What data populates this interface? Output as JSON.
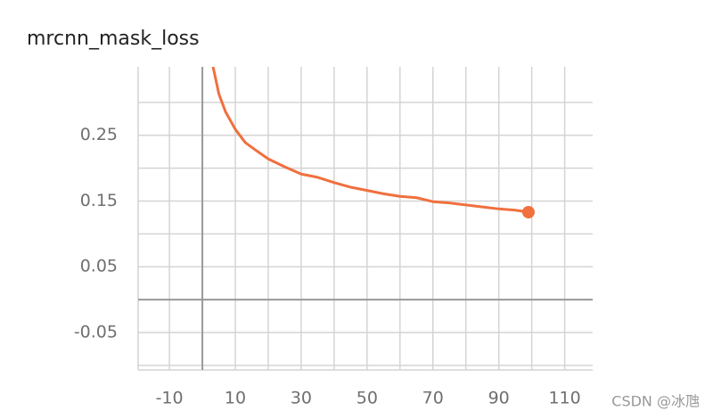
{
  "chart_data": {
    "type": "line",
    "title": "mrcnn_mask_loss",
    "x": [
      3,
      5,
      7,
      10,
      13,
      16,
      20,
      25,
      30,
      35,
      40,
      45,
      50,
      55,
      60,
      65,
      70,
      75,
      80,
      85,
      90,
      95,
      99
    ],
    "series": [
      {
        "color": "#f0703e",
        "values": [
          0.36,
          0.313,
          0.286,
          0.259,
          0.239,
          0.228,
          0.214,
          0.202,
          0.191,
          0.186,
          0.178,
          0.171,
          0.166,
          0.161,
          0.157,
          0.155,
          0.149,
          0.147,
          0.144,
          0.141,
          0.138,
          0.136,
          0.133
        ]
      }
    ],
    "xlim": [
      -19.5,
      118.5
    ],
    "ylim": [
      -0.107,
      0.354
    ],
    "xticks": [
      -10,
      10,
      30,
      50,
      70,
      90,
      110
    ],
    "yticks": [
      -0.05,
      0.05,
      0.15,
      0.25
    ],
    "xgrid": [
      -10,
      0,
      10,
      20,
      30,
      40,
      50,
      60,
      70,
      80,
      90,
      100,
      110
    ],
    "ygrid": [
      -0.1,
      -0.05,
      0,
      0.05,
      0.1,
      0.15,
      0.2,
      0.25,
      0.3
    ],
    "grid": true
  },
  "watermark": "CSDN @冰虺"
}
